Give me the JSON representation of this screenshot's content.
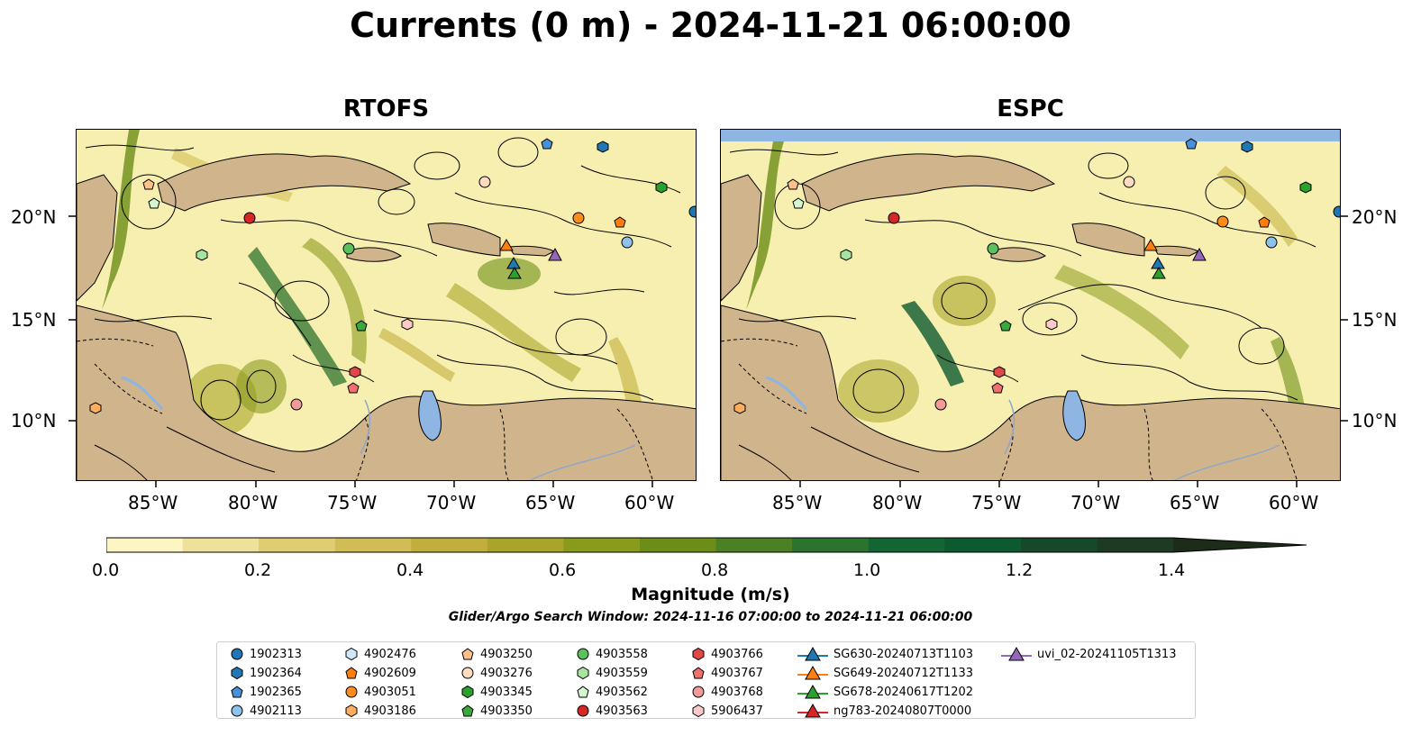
{
  "title": "Currents (0 m) - 2024-11-21 06:00:00",
  "panels": [
    {
      "title": "RTOFS"
    },
    {
      "title": "ESPC"
    }
  ],
  "lat_labels": [
    "20°N",
    "15°N",
    "10°N"
  ],
  "lon_labels": [
    "85°W",
    "80°W",
    "75°W",
    "70°W",
    "65°W",
    "60°W"
  ],
  "colorbar": {
    "label": "Magnitude (m/s)",
    "ticks": [
      "0.0",
      "0.2",
      "0.4",
      "0.6",
      "0.8",
      "1.0",
      "1.2",
      "1.4"
    ],
    "range": [
      0.0,
      1.5
    ],
    "extend": "max",
    "colors": [
      "#fdf6c3",
      "#efe19a",
      "#e0cd72",
      "#d1bd56",
      "#c1ae3e",
      "#a9a42a",
      "#8a9a1d",
      "#6c8d18",
      "#4b8024",
      "#2c732e",
      "#136634",
      "#0d5a30",
      "#16482a",
      "#1d3a22",
      "#1c2c18"
    ]
  },
  "search_window": "Glider/Argo Search Window: 2024-11-16 07:00:00 to 2024-11-21 06:00:00",
  "legend": [
    {
      "label": "1902313",
      "marker": "circle",
      "color": "#1f77b4"
    },
    {
      "label": "1902364",
      "marker": "hexagon",
      "color": "#1f77b4"
    },
    {
      "label": "1902365",
      "marker": "pentagon",
      "color": "#4a90d9"
    },
    {
      "label": "4902113",
      "marker": "circle",
      "color": "#8fc2ea"
    },
    {
      "label": "4902476",
      "marker": "hexagon",
      "color": "#cfe7f7"
    },
    {
      "label": "4902609",
      "marker": "pentagon",
      "color": "#ff7f0e"
    },
    {
      "label": "4903051",
      "marker": "circle",
      "color": "#ff8c1a"
    },
    {
      "label": "4903186",
      "marker": "hexagon",
      "color": "#ffad60"
    },
    {
      "label": "4903250",
      "marker": "pentagon",
      "color": "#ffc08a"
    },
    {
      "label": "4903276",
      "marker": "circle",
      "color": "#ffdcbf"
    },
    {
      "label": "4903345",
      "marker": "hexagon",
      "color": "#2ca02c"
    },
    {
      "label": "4903350",
      "marker": "pentagon",
      "color": "#3aa83a"
    },
    {
      "label": "4903558",
      "marker": "circle",
      "color": "#5cc05c"
    },
    {
      "label": "4903559",
      "marker": "hexagon",
      "color": "#a6e4a0"
    },
    {
      "label": "4903562",
      "marker": "pentagon",
      "color": "#d5f5d0"
    },
    {
      "label": "4903563",
      "marker": "circle",
      "color": "#d62728"
    },
    {
      "label": "4903766",
      "marker": "hexagon",
      "color": "#e04848"
    },
    {
      "label": "4903767",
      "marker": "pentagon",
      "color": "#f07070"
    },
    {
      "label": "4903768",
      "marker": "circle",
      "color": "#f59a9a"
    },
    {
      "label": "5906437",
      "marker": "hexagon",
      "color": "#fbc9c9"
    },
    {
      "label": "SG630-20240713T1103",
      "marker": "triangle",
      "color": "#1f77b4"
    },
    {
      "label": "SG649-20240712T1133",
      "marker": "triangle",
      "color": "#ff7f0e"
    },
    {
      "label": "SG678-20240617T1202",
      "marker": "triangle",
      "color": "#2ca02c"
    },
    {
      "label": "ng783-20240807T0000",
      "marker": "triangle",
      "color": "#d62728"
    },
    {
      "label": "uvi_02-20241105T1313",
      "marker": "triangle",
      "color": "#9467bd"
    }
  ]
}
